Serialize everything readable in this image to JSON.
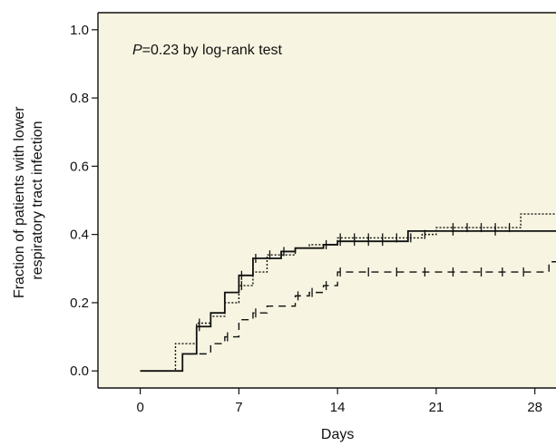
{
  "chart_data": {
    "type": "line",
    "title": "",
    "xlabel": "Days",
    "ylabel": [
      "Fraction of patients with lower",
      "respiratory tract infection"
    ],
    "annotation": {
      "italic": "P",
      "rest": "=0.23 by log-rank test"
    },
    "xlim": [
      -3,
      29.5
    ],
    "ylim": [
      -0.05,
      1.05
    ],
    "xticks": [
      0,
      7,
      14,
      21,
      28
    ],
    "xtick_labels": [
      "0",
      "7",
      "14",
      "21",
      "28"
    ],
    "yticks": [
      0.0,
      0.2,
      0.4,
      0.6,
      0.8,
      1.0
    ],
    "ytick_labels": [
      "0.0",
      "0.2",
      "0.4",
      "0.6",
      "0.8",
      "1.0"
    ],
    "grid": false,
    "background": "#f7f5e1",
    "series": [
      {
        "style": "solid",
        "color": "#111111",
        "steps": [
          [
            0,
            0.0
          ],
          [
            3,
            0.05
          ],
          [
            4,
            0.13
          ],
          [
            5,
            0.17
          ],
          [
            6,
            0.23
          ],
          [
            7,
            0.28
          ],
          [
            8,
            0.33
          ],
          [
            10,
            0.35
          ],
          [
            11,
            0.36
          ],
          [
            13,
            0.37
          ],
          [
            14,
            0.38
          ],
          [
            19,
            0.41
          ]
        ],
        "end_x": 29.5,
        "censor": [
          [
            4,
            0.13
          ],
          [
            7,
            0.28
          ],
          [
            8,
            0.33
          ],
          [
            10,
            0.35
          ],
          [
            13,
            0.37
          ],
          [
            14,
            0.38
          ],
          [
            15,
            0.38
          ],
          [
            16,
            0.38
          ],
          [
            17,
            0.38
          ],
          [
            22,
            0.41
          ],
          [
            25,
            0.41
          ]
        ]
      },
      {
        "style": "dotted",
        "color": "#111111",
        "steps": [
          [
            0,
            0.0
          ],
          [
            2.5,
            0.08
          ],
          [
            4,
            0.14
          ],
          [
            5,
            0.16
          ],
          [
            6,
            0.2
          ],
          [
            7,
            0.25
          ],
          [
            8,
            0.29
          ],
          [
            9,
            0.34
          ],
          [
            11,
            0.36
          ],
          [
            12,
            0.37
          ],
          [
            14,
            0.39
          ],
          [
            20,
            0.4
          ],
          [
            21,
            0.42
          ],
          [
            27,
            0.46
          ]
        ],
        "end_x": 29.5,
        "censor": [
          [
            4,
            0.14
          ],
          [
            7,
            0.25
          ],
          [
            9,
            0.34
          ],
          [
            14,
            0.39
          ],
          [
            15,
            0.39
          ],
          [
            16,
            0.39
          ],
          [
            17,
            0.39
          ],
          [
            18,
            0.39
          ],
          [
            19,
            0.39
          ],
          [
            20,
            0.4
          ],
          [
            22,
            0.42
          ],
          [
            23,
            0.42
          ],
          [
            24,
            0.42
          ],
          [
            25,
            0.42
          ],
          [
            26,
            0.42
          ]
        ]
      },
      {
        "style": "dashed",
        "color": "#111111",
        "steps": [
          [
            0,
            0.0
          ],
          [
            3,
            0.05
          ],
          [
            5,
            0.08
          ],
          [
            6,
            0.1
          ],
          [
            7,
            0.15
          ],
          [
            8,
            0.17
          ],
          [
            9,
            0.19
          ],
          [
            11,
            0.22
          ],
          [
            12,
            0.23
          ],
          [
            13,
            0.25
          ],
          [
            14,
            0.29
          ],
          [
            29,
            0.32
          ]
        ],
        "end_x": 29.5,
        "censor": [
          [
            6,
            0.1
          ],
          [
            8,
            0.17
          ],
          [
            11,
            0.22
          ],
          [
            12,
            0.23
          ],
          [
            13,
            0.25
          ],
          [
            14,
            0.29
          ],
          [
            16,
            0.29
          ],
          [
            18,
            0.29
          ],
          [
            20,
            0.29
          ],
          [
            22,
            0.29
          ],
          [
            24,
            0.29
          ],
          [
            25.5,
            0.29
          ],
          [
            27,
            0.29
          ]
        ]
      }
    ]
  }
}
